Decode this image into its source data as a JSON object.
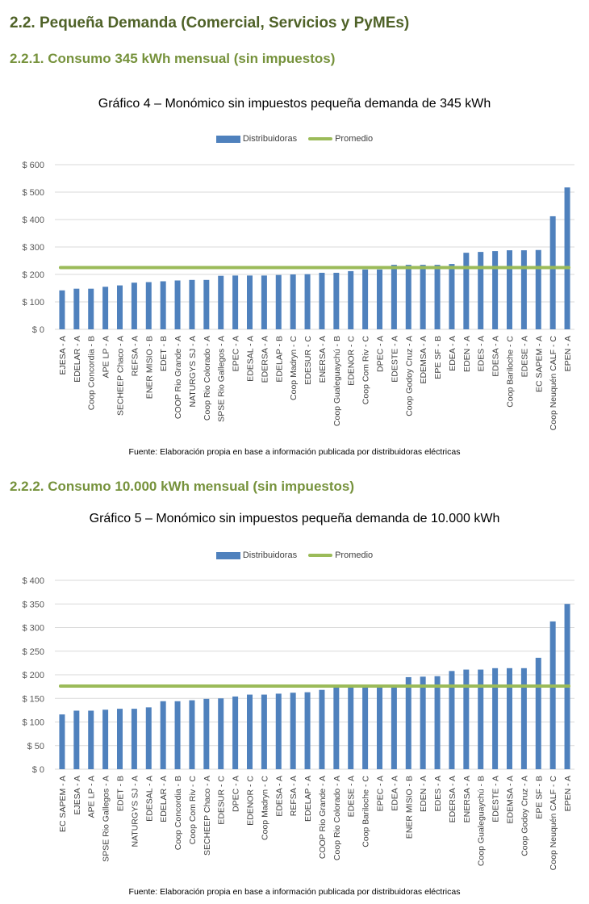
{
  "section": {
    "title": "2.2. Pequeña Demanda (Comercial, Servicios y PyMEs)"
  },
  "sub1": {
    "title": "2.2.1. Consumo 345 kWh mensual (sin impuestos)"
  },
  "sub2": {
    "title": "2.2.2. Consumo 10.000 kWh mensual (sin impuestos)"
  },
  "source_note": "Fuente: Elaboración propia en base a información publicada por distribuidoras eléctricas",
  "colors": {
    "bar": "#4f81bd",
    "average": "#9bbb59",
    "heading": "#4f6228",
    "subheading": "#76923c"
  },
  "chart_data": [
    {
      "type": "bar",
      "title": "Gráfico 4 – Monómico sin impuestos pequeña demanda de 345 kWh",
      "legend": [
        "Distribuidoras",
        "Promedio"
      ],
      "legend_position": "top",
      "grid": true,
      "ylim": [
        0,
        600
      ],
      "yticks": [
        "$ 0",
        "$ 100",
        "$ 200",
        "$ 300",
        "$ 400",
        "$ 500",
        "$ 600"
      ],
      "ytick_values": [
        0,
        100,
        200,
        300,
        400,
        500,
        600
      ],
      "categories": [
        "EJESA - A",
        "EDELAR - A",
        "Coop Concordia - B",
        "APE LP - A",
        "SECHEEP Chaco - A",
        "REFSA - A",
        "ENER MISIO - B",
        "EDET - B",
        "COOP Rio Grande - A",
        "NATURGYS SJ - A",
        "Coop Rio Colorado - A",
        "SPSE Rio Gallegos - A",
        "EPEC - A",
        "EDESAL - A",
        "EDERSA - A",
        "EDELAP - B",
        "Coop Madryn - C",
        "EDESUR - C",
        "ENERSA - A",
        "Coop Gualeguaychú - B",
        "EDENOR - C",
        "Coop Com Riv - C",
        "DPEC - A",
        "EDESTE - A",
        "Coop Godoy Cruz - A",
        "EDEMSA - A",
        "EPE SF - B",
        "EDEA - A",
        "EDEN - A",
        "EDES - A",
        "EDESA - A",
        "Coop Bariloche - C",
        "EDESE - A",
        "EC SAPEM - A",
        "Coop Neuquén CALF - C",
        "EPEN - A"
      ],
      "series": [
        {
          "name": "Distribuidoras",
          "values": [
            142,
            148,
            148,
            155,
            160,
            170,
            172,
            175,
            178,
            180,
            180,
            195,
            196,
            196,
            196,
            198,
            200,
            201,
            206,
            206,
            212,
            218,
            218,
            235,
            235,
            235,
            235,
            238,
            279,
            282,
            285,
            288,
            288,
            289,
            412,
            517
          ]
        },
        {
          "name": "Promedio",
          "value": 225
        }
      ]
    },
    {
      "type": "bar",
      "title": "Gráfico 5 – Monómico sin impuestos pequeña demanda de 10.000 kWh",
      "legend": [
        "Distribuidoras",
        "Promedio"
      ],
      "legend_position": "top",
      "grid": true,
      "ylim": [
        0,
        400
      ],
      "yticks": [
        "$ 0",
        "$ 50",
        "$ 100",
        "$ 150",
        "$ 200",
        "$ 250",
        "$ 300",
        "$ 350",
        "$ 400"
      ],
      "ytick_values": [
        0,
        50,
        100,
        150,
        200,
        250,
        300,
        350,
        400
      ],
      "categories": [
        "EC SAPEM - A",
        "EJESA - A",
        "APE LP - A",
        "SPSE Rio Gallegos - A",
        "EDET - B",
        "NATURGYS SJ - A",
        "EDESAL - A",
        "EDELAR - A",
        "Coop Concordia - B",
        "Coop Com Riv - C",
        "SECHEEP Chaco - A",
        "EDESUR - C",
        "DPEC - A",
        "EDENOR - C",
        "Coop Madryn - C",
        "EDESA - A",
        "REFSA - A",
        "EDELAP - A",
        "COOP Rio Grande - A",
        "Coop Rio Colorado - A",
        "EDESE - A",
        "Coop Bariloche - C",
        "EPEC - A",
        "EDEA - A",
        "ENER MISIO - B",
        "EDEN - A",
        "EDES - A",
        "EDERSA - A",
        "ENERSA - A",
        "Coop Gualeguaychú - B",
        "EDESTE - A",
        "EDEMSA - A",
        "Coop Godoy Cruz - A",
        "EPE SF - B",
        "Coop Neuquén CALF - C",
        "EPEN - A"
      ],
      "series": [
        {
          "name": "Distribuidoras",
          "values": [
            116,
            124,
            124,
            126,
            128,
            128,
            131,
            144,
            144,
            146,
            149,
            150,
            154,
            158,
            158,
            160,
            162,
            163,
            168,
            174,
            175,
            175,
            175,
            176,
            195,
            196,
            197,
            208,
            211,
            211,
            214,
            214,
            214,
            236,
            313,
            350
          ]
        },
        {
          "name": "Promedio",
          "value": 176
        }
      ]
    }
  ]
}
